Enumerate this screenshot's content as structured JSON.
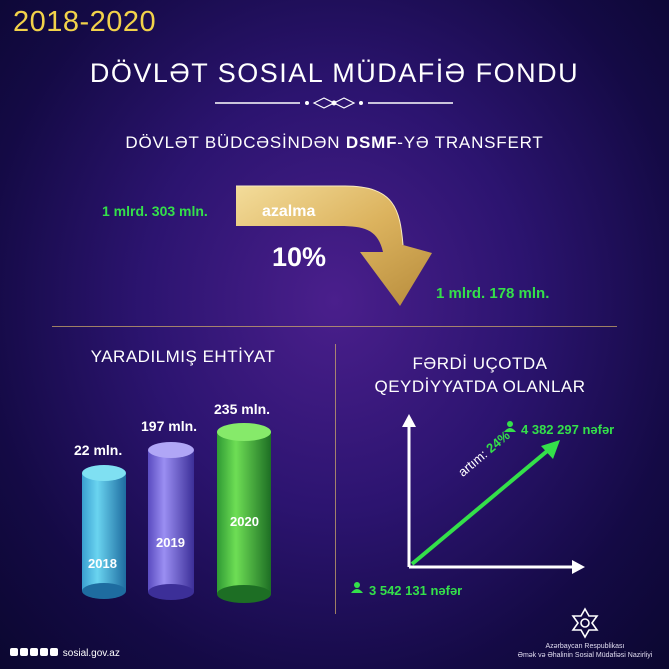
{
  "header": {
    "years": "2018-2020",
    "title": "DÖVLƏT SOSIAL MÜDAFİƏ FONDU",
    "subtitle_pre": "DÖVLƏT BÜDCƏSİNDƏN ",
    "subtitle_bold": "DSMF",
    "subtitle_post": "-YƏ TRANSFERT"
  },
  "transfer": {
    "from_value": "1 mlrd. 303 mln.",
    "to_value": "1 mlrd. 178 mln.",
    "change_label": "azalma",
    "change_percent": "10%"
  },
  "reserve": {
    "title": "YARADILMIŞ EHTİYAT",
    "bars": [
      {
        "year": "2018",
        "value_label": "22 mln.",
        "value": 22
      },
      {
        "year": "2019",
        "value_label": "197 mln.",
        "value": 197
      },
      {
        "year": "2020",
        "value_label": "235 mln.",
        "value": 235
      }
    ]
  },
  "registration": {
    "title_line1": "FƏRDİ UÇOTDA",
    "title_line2": "QEYDİYYATDA OLANLAR",
    "growth_label": "artım: ",
    "growth_value": "24%",
    "start_value": "3 542 131 nəfər",
    "end_value": "4 382 297 nəfər"
  },
  "footer": {
    "website": "sosial.gov.az",
    "ministry_line1": "Azərbaycan Respublikası",
    "ministry_line2": "Əmək və Əhalinin Sosial Müdafiəsi Nazirliyi"
  },
  "colors": {
    "accent_yellow": "#f2d24a",
    "accent_green": "#34e04a",
    "gold": "#d4b068"
  }
}
